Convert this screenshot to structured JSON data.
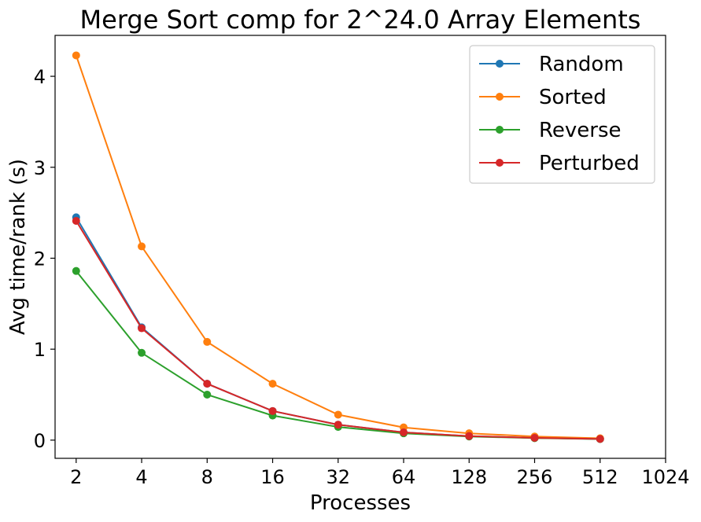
{
  "chart_data": {
    "type": "line",
    "title": "Merge Sort comp for 2^24.0 Array Elements",
    "xlabel": "Processes",
    "ylabel": "Avg time/rank (s)",
    "x_scale": "log2",
    "x": [
      2,
      4,
      8,
      16,
      32,
      64,
      128,
      256,
      512
    ],
    "x_ticks": [
      "2",
      "4",
      "8",
      "16",
      "32",
      "64",
      "128",
      "256",
      "512",
      "1024"
    ],
    "x_tick_values": [
      2,
      4,
      8,
      16,
      32,
      64,
      128,
      256,
      512,
      1024
    ],
    "y_ticks": [
      "0",
      "1",
      "2",
      "3",
      "4"
    ],
    "y_tick_values": [
      0,
      1,
      2,
      3,
      4
    ],
    "xlim": [
      1.6,
      1024
    ],
    "ylim": [
      -0.2,
      4.45
    ],
    "grid": false,
    "legend_position": "top-right",
    "series": [
      {
        "name": "Random",
        "color": "#1f77b4",
        "values": [
          2.45,
          1.24,
          0.62,
          0.32,
          0.17,
          0.085,
          0.045,
          0.025,
          0.013
        ]
      },
      {
        "name": "Sorted",
        "color": "#ff7f0e",
        "values": [
          4.23,
          2.13,
          1.08,
          0.62,
          0.28,
          0.14,
          0.075,
          0.04,
          0.02
        ]
      },
      {
        "name": "Reverse",
        "color": "#2ca02c",
        "values": [
          1.86,
          0.96,
          0.5,
          0.27,
          0.145,
          0.075,
          0.04,
          0.022,
          0.012
        ]
      },
      {
        "name": "Perturbed",
        "color": "#d62728",
        "values": [
          2.41,
          1.23,
          0.62,
          0.32,
          0.17,
          0.085,
          0.045,
          0.025,
          0.013
        ]
      }
    ]
  }
}
